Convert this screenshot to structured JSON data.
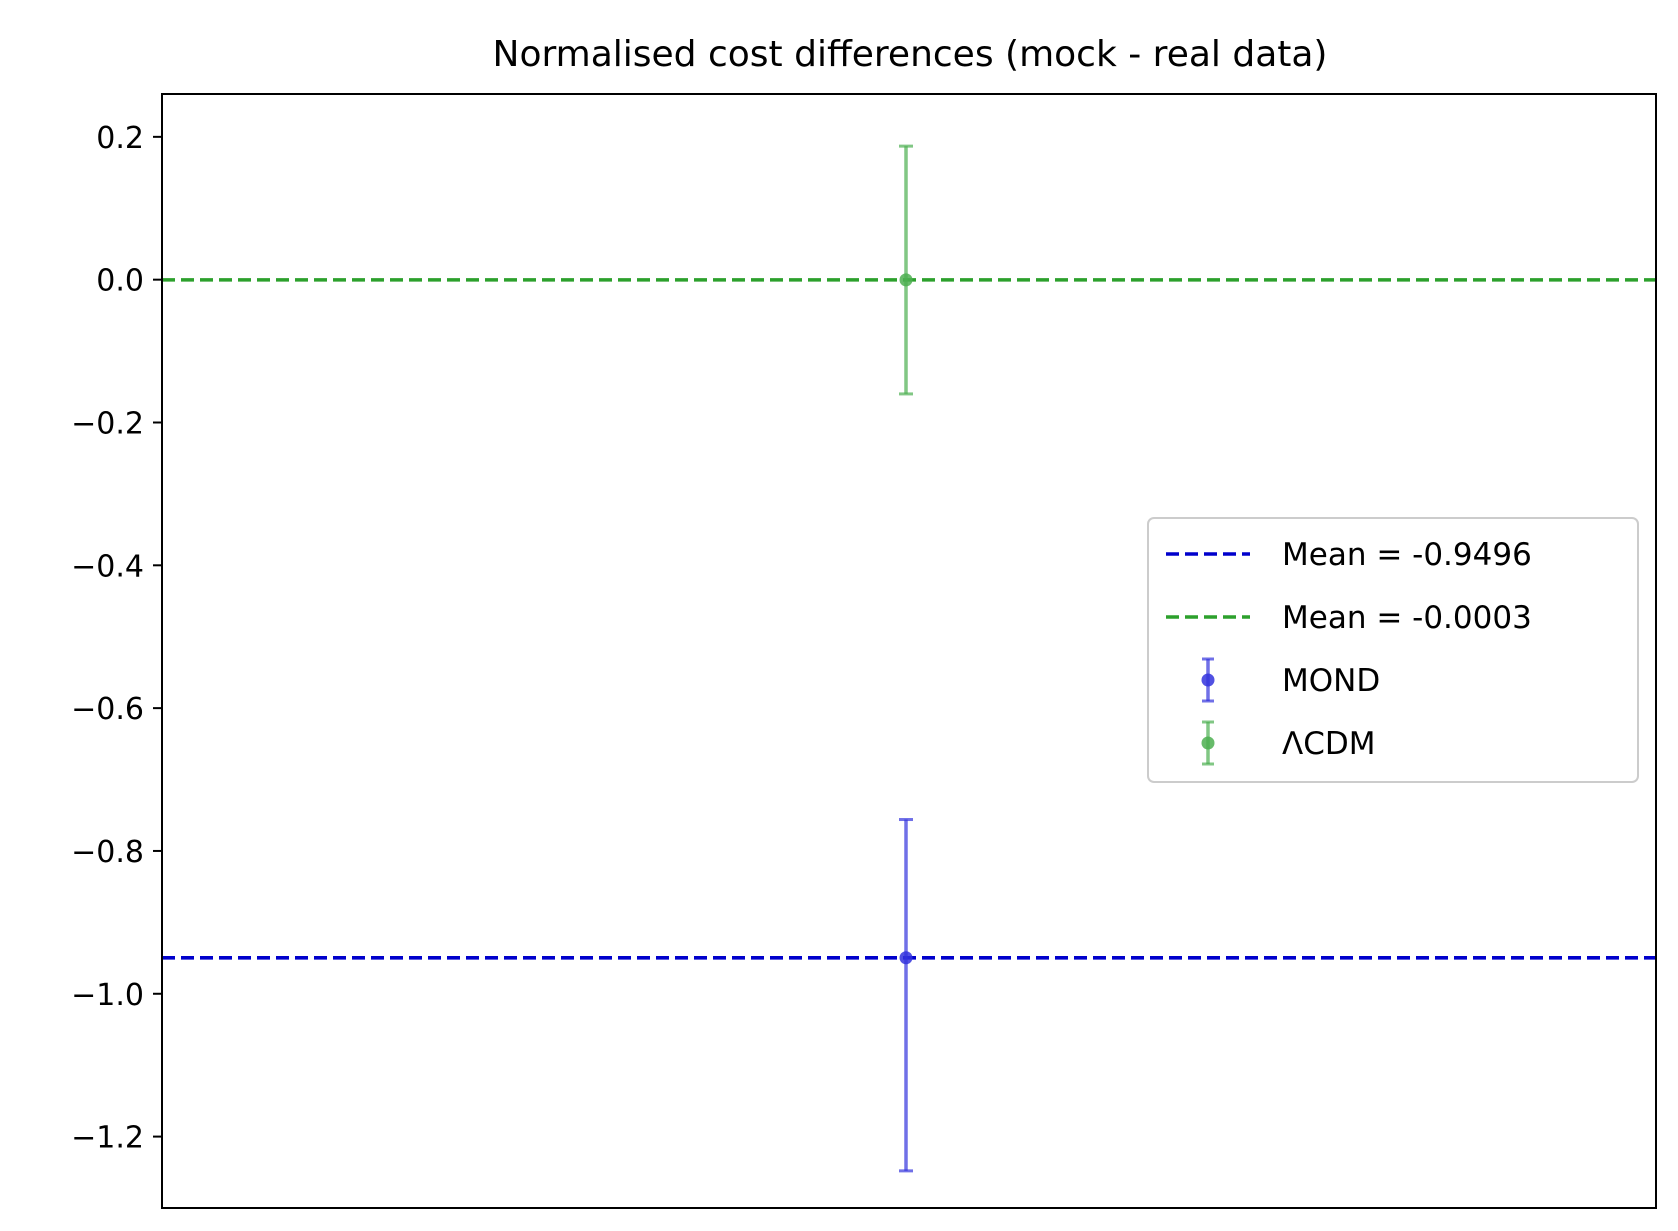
{
  "chart_data": {
    "type": "scatter",
    "title": "Normalised cost differences (mock - real data)",
    "xlabel": "",
    "ylabel": "",
    "ylim": [
      -1.3,
      0.26
    ],
    "yticks": [
      {
        "value": 0.2,
        "label": "0.2"
      },
      {
        "value": 0.0,
        "label": "0.0"
      },
      {
        "value": -0.2,
        "label": "−0.2"
      },
      {
        "value": -0.4,
        "label": "−0.4"
      },
      {
        "value": -0.6,
        "label": "−0.6"
      },
      {
        "value": -0.8,
        "label": "−0.8"
      },
      {
        "value": -1.0,
        "label": "−1.0"
      },
      {
        "value": -1.2,
        "label": "−1.2"
      }
    ],
    "x_ticks_visible": false,
    "grid": false,
    "legend_position": "center-right",
    "mean_lines": [
      {
        "label": "Mean = -0.9496",
        "value": -0.9496,
        "color": "#0000cc",
        "style": "dashed"
      },
      {
        "label": "Mean = -0.0003",
        "value": -0.0003,
        "color": "#2ca02c",
        "style": "dashed"
      }
    ],
    "series": [
      {
        "name": "MOND",
        "color": "#3333dd",
        "y": -0.9496,
        "err_low": -1.248,
        "err_high": -0.756
      },
      {
        "name": "ΛCDM",
        "color": "#4caf50",
        "y": -0.0003,
        "err_low": -0.16,
        "err_high": 0.187
      }
    ]
  }
}
